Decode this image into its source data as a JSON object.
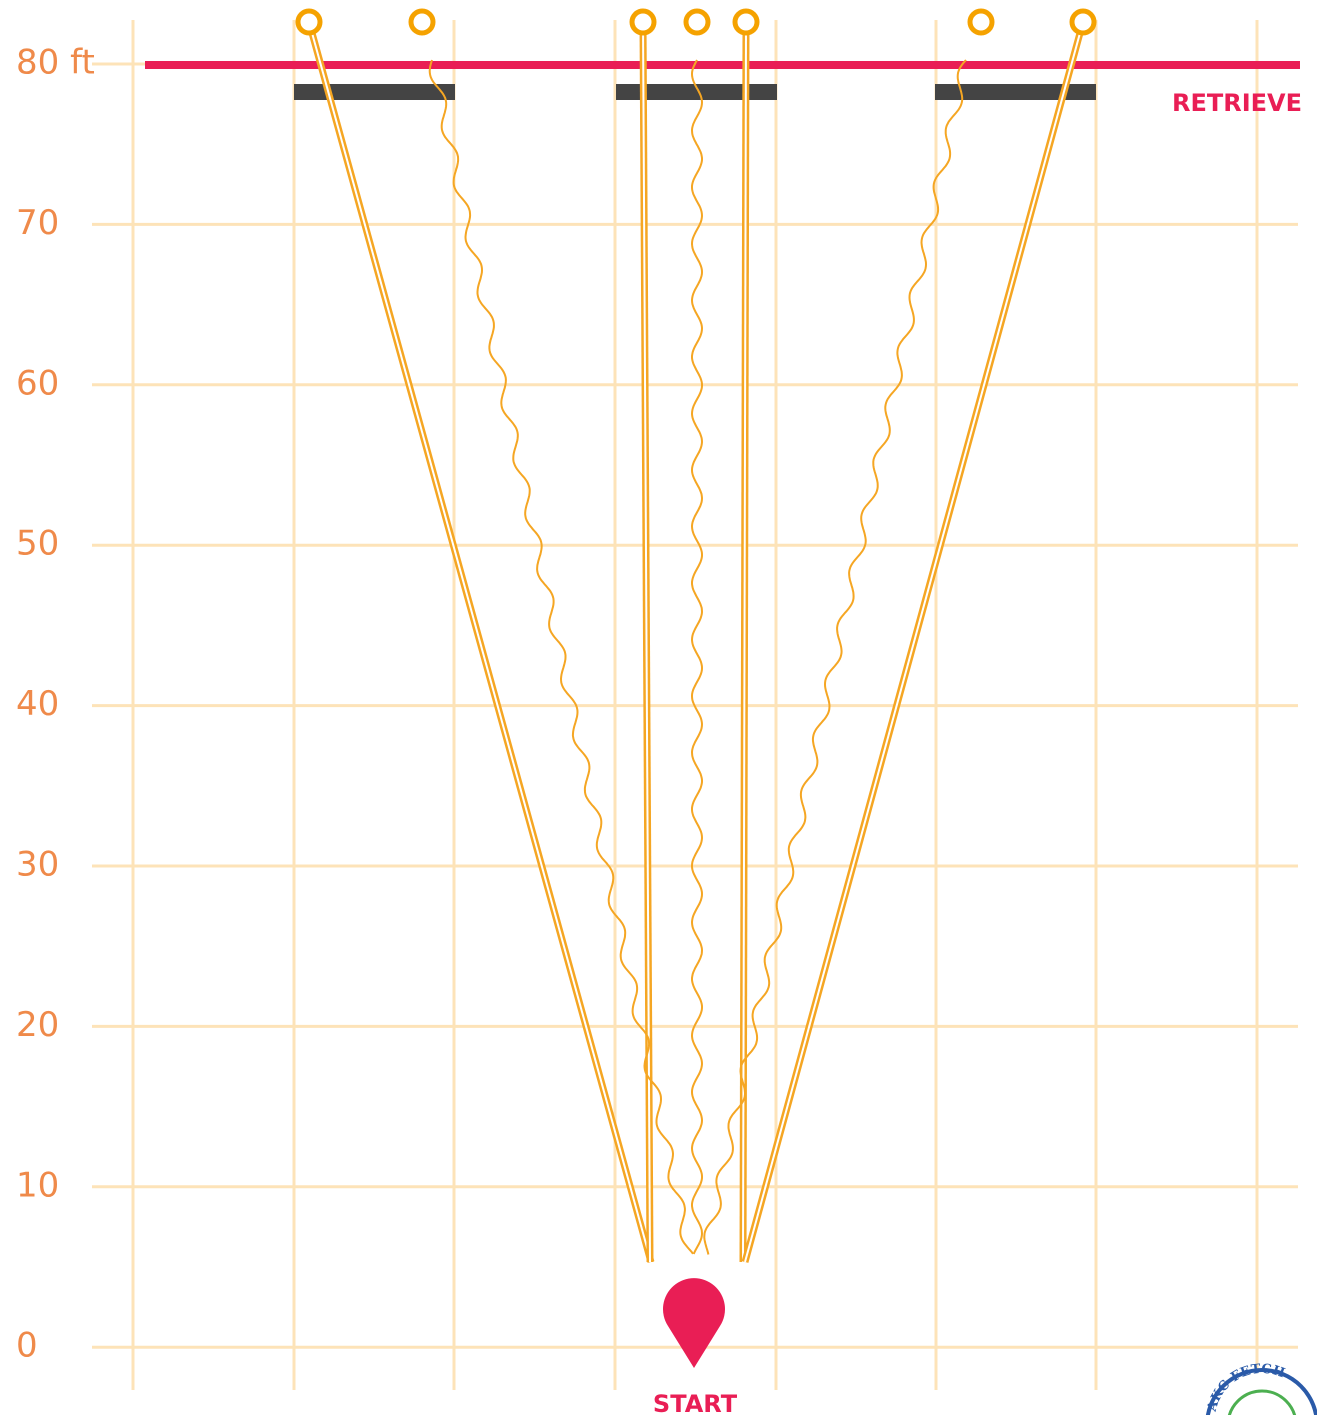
{
  "axis": {
    "labels": [
      "80 ft",
      "70",
      "60",
      "50",
      "40",
      "30",
      "20",
      "10",
      "0"
    ]
  },
  "retrieve_label": "RETRIEVE",
  "start_label": "START",
  "logo": {
    "text": "AKC FETCH"
  }
}
